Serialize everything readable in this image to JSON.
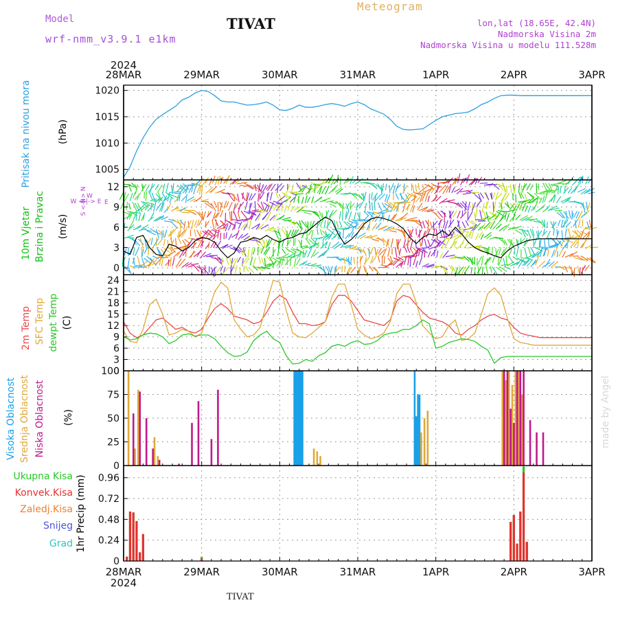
{
  "header": {
    "model_label": "Model",
    "model_name": "wrf-nmm_v3.9.1 e1km",
    "station": "TIVAT",
    "title": "Meteogram",
    "lonlat": "lon,lat (18.65E, 42.4N)",
    "elevation": "Nadmorska Visina 2m",
    "model_elevation": "Nadmorska Visina u modelu 111.528m"
  },
  "footer": {
    "station": "TIVAT",
    "credit": "made by Angel"
  },
  "time_axis": {
    "year_top": "2024",
    "year_bottom": "2024",
    "labels": [
      "28MAR",
      "29MAR",
      "30MAR",
      "31MAR",
      "1APR",
      "2APR",
      "3APR"
    ]
  },
  "colors": {
    "pressure": "#2a9fe0",
    "temp2m": "#e84848",
    "sfc_temp": "#e0a838",
    "dewpt": "#28c828",
    "wind_speed": "#000000",
    "high_cloud": "#18a0e8",
    "mid_cloud": "#e0a838",
    "low_cloud": "#c0188c",
    "total_precip": "#28c828",
    "conv_precip": "#e83030",
    "freezing_rain": "#f08030",
    "snow": "#5050e0",
    "hail": "#28c8c0",
    "wind_barbs": "#10c010"
  },
  "chart_data": [
    {
      "type": "line",
      "panel": "pressure",
      "ylabel": "Pritisak na nivou mora",
      "unit": "(hPa)",
      "ylim": [
        1003,
        1021
      ],
      "yticks": [
        1005,
        1010,
        1015,
        1020
      ],
      "grid": true,
      "series": [
        {
          "name": "Pritisak na nivou mora",
          "x": [
            0,
            2,
            4,
            6,
            8,
            10,
            12,
            14,
            16,
            18,
            20,
            22,
            24,
            26,
            28,
            30,
            32,
            34,
            36,
            38,
            40,
            42,
            44,
            46,
            48,
            50,
            52,
            54,
            56,
            58,
            60,
            62,
            64,
            66,
            68,
            70,
            72,
            74,
            76,
            78,
            80,
            82,
            84,
            86,
            88,
            90,
            92,
            94,
            96,
            98,
            100,
            102,
            104,
            106,
            108,
            110,
            112,
            114,
            116,
            118,
            120,
            122,
            124,
            126,
            128,
            130,
            132,
            134,
            136,
            138,
            140,
            142,
            144
          ],
          "values": [
            1003.5,
            1005.5,
            1008.5,
            1011,
            1013,
            1014.5,
            1015.4,
            1016.2,
            1017,
            1018.2,
            1018.7,
            1019.5,
            1020.0,
            1019.8,
            1019,
            1018,
            1017.8,
            1017.8,
            1017.5,
            1017.2,
            1017.3,
            1017.5,
            1017.8,
            1017.2,
            1016.3,
            1016.2,
            1016.6,
            1017.2,
            1016.8,
            1016.8,
            1017.0,
            1017.3,
            1017.5,
            1017.3,
            1017.0,
            1017.5,
            1017.8,
            1017.3,
            1016.5,
            1016.0,
            1015.5,
            1014.5,
            1013.2,
            1012.6,
            1012.5,
            1012.6,
            1012.7,
            1013.5,
            1014.3,
            1015.0,
            1015.3,
            1015.6,
            1015.7,
            1015.9,
            1016.5,
            1017.3,
            1017.8,
            1018.5,
            1019.0,
            1019.1,
            1019.1,
            1019.0,
            1019.0,
            1019.0,
            1019.0,
            1019.0,
            1019.0,
            1019.0,
            1019.0,
            1019.0,
            1019.0,
            1019.0,
            1019.0
          ]
        }
      ]
    },
    {
      "type": "line",
      "panel": "wind",
      "ylabel": "10m Vjetar Brzina i Pravac",
      "unit": "(m/s)",
      "compass_label": "N\n^\n|\nW <-|-> E\n|\nv\nS",
      "ylim": [
        -1,
        13
      ],
      "yticks": [
        0,
        3,
        6,
        9,
        12
      ],
      "grid": true,
      "series": [
        {
          "name": "10m Vjetar Brzina",
          "x": [
            0,
            2,
            4,
            6,
            8,
            10,
            12,
            14,
            16,
            18,
            20,
            22,
            24,
            26,
            28,
            30,
            32,
            34,
            36,
            38,
            40,
            42,
            44,
            46,
            48,
            50,
            52,
            54,
            56,
            58,
            60,
            62,
            64,
            66,
            68,
            70,
            72,
            74,
            76,
            78,
            80,
            82,
            84,
            86,
            88,
            90,
            92,
            94,
            96,
            98,
            100,
            102,
            104,
            106,
            108,
            110,
            112,
            114,
            116,
            118,
            120,
            122,
            124,
            126,
            128,
            130,
            132,
            134,
            136,
            138,
            140,
            142,
            144
          ],
          "values": [
            2.5,
            2,
            4.5,
            4.8,
            3,
            2,
            1.8,
            3.5,
            3.2,
            2.5,
            3,
            4,
            4.5,
            4.3,
            3.8,
            2.5,
            1.5,
            2.2,
            3.8,
            4,
            4.5,
            4.2,
            4.8,
            4.2,
            3.8,
            4.3,
            4.5,
            5,
            5.2,
            6,
            6.8,
            7.5,
            7,
            5,
            3.5,
            4.2,
            5.2,
            6.5,
            7.2,
            7.5,
            7.3,
            7,
            6.5,
            5.8,
            4.5,
            3.6,
            4.5,
            5,
            4.8,
            5.5,
            4.8,
            6,
            5,
            3.8,
            3,
            2.5,
            2.2,
            1.8,
            1.5,
            2.5,
            3.2,
            3.6,
            4.0,
            4.2,
            4.3,
            4.3,
            4.3,
            4.3,
            4.3,
            4.3,
            4.3,
            4.3,
            4.3
          ]
        }
      ]
    },
    {
      "type": "line",
      "panel": "temperature",
      "ylabel": "2m Temp SFC Temp dewpt Temp",
      "unit": "(C)",
      "ylim": [
        0,
        25.5
      ],
      "yticks": [
        0,
        3,
        6,
        9,
        12,
        15,
        18,
        21,
        24
      ],
      "grid": true,
      "series": [
        {
          "name": "2m Temp",
          "x": [
            0,
            2,
            4,
            6,
            8,
            10,
            12,
            14,
            16,
            18,
            20,
            22,
            24,
            26,
            28,
            30,
            32,
            34,
            36,
            38,
            40,
            42,
            44,
            46,
            48,
            50,
            52,
            54,
            56,
            58,
            60,
            62,
            64,
            66,
            68,
            70,
            72,
            74,
            76,
            78,
            80,
            82,
            84,
            86,
            88,
            90,
            92,
            94,
            96,
            98,
            100,
            102,
            104,
            106,
            108,
            110,
            112,
            114,
            116,
            118,
            120,
            122,
            124,
            126,
            128,
            130,
            132,
            134,
            136,
            138,
            140,
            142,
            144
          ],
          "values": [
            13,
            10,
            8.8,
            9.5,
            11.5,
            13.5,
            14,
            12.5,
            11,
            11.5,
            10.5,
            10,
            11,
            14,
            16.5,
            17.8,
            16.5,
            14.5,
            14,
            13.5,
            12.5,
            13,
            15.5,
            18.5,
            20,
            19,
            15.5,
            12.5,
            12.5,
            12,
            12.2,
            13,
            17.5,
            20,
            20,
            18.5,
            16,
            13.5,
            13,
            12.5,
            12,
            13.5,
            18.5,
            20,
            19.5,
            17.5,
            15.5,
            14,
            13.5,
            13,
            12,
            10,
            9.5,
            11,
            12,
            13.5,
            14.5,
            15,
            14,
            13.5,
            11.5,
            10,
            9.5,
            9.2,
            8.8,
            8.8,
            8.8,
            8.8,
            8.8,
            8.8,
            8.8,
            8.8,
            8.8
          ]
        },
        {
          "name": "SFC Temp",
          "x": [
            0,
            2,
            4,
            6,
            8,
            10,
            12,
            14,
            16,
            18,
            20,
            22,
            24,
            26,
            28,
            30,
            32,
            34,
            36,
            38,
            40,
            42,
            44,
            46,
            48,
            50,
            52,
            54,
            56,
            58,
            60,
            62,
            64,
            66,
            68,
            70,
            72,
            74,
            76,
            78,
            80,
            82,
            84,
            86,
            88,
            90,
            92,
            94,
            96,
            98,
            100,
            102,
            104,
            106,
            108,
            110,
            112,
            114,
            116,
            118,
            120,
            122,
            124,
            126,
            128,
            130,
            132,
            134,
            136,
            138,
            140,
            142,
            144
          ],
          "values": [
            10.5,
            7.8,
            7.5,
            11,
            17.5,
            19,
            15,
            9.5,
            10,
            11,
            10.5,
            9,
            10,
            15.5,
            21,
            23.5,
            22,
            13.5,
            11,
            9,
            9.5,
            11.5,
            18,
            24,
            23.5,
            16,
            10,
            9,
            8.8,
            10,
            11.5,
            13,
            19.5,
            23,
            23,
            17.5,
            11,
            9.5,
            8.5,
            9,
            10,
            13,
            20.5,
            23,
            23,
            18,
            12,
            10,
            8.5,
            9,
            12,
            13.5,
            8,
            8.5,
            10,
            15,
            20.5,
            22,
            20,
            14,
            8.5,
            7.5,
            7.2,
            6.8,
            6.8,
            6.8,
            6.8,
            6.8,
            6.8,
            6.8,
            6.8,
            6.8,
            6.8
          ]
        },
        {
          "name": "dewpt Temp",
          "x": [
            0,
            2,
            4,
            6,
            8,
            10,
            12,
            14,
            16,
            18,
            20,
            22,
            24,
            26,
            28,
            30,
            32,
            34,
            36,
            38,
            40,
            42,
            44,
            46,
            48,
            50,
            52,
            54,
            56,
            58,
            60,
            62,
            64,
            66,
            68,
            70,
            72,
            74,
            76,
            78,
            80,
            82,
            84,
            86,
            88,
            90,
            92,
            94,
            96,
            98,
            100,
            102,
            104,
            106,
            108,
            110,
            112,
            114,
            116,
            118,
            120,
            122,
            124,
            126,
            128,
            130,
            132,
            134,
            136,
            138,
            140,
            142,
            144
          ],
          "values": [
            9,
            8.2,
            8.5,
            9.5,
            10,
            9.8,
            9,
            7.2,
            8,
            9.5,
            9.8,
            9.2,
            9.5,
            9.5,
            8.5,
            6.5,
            4.8,
            3.8,
            4,
            5,
            8,
            9.5,
            10.5,
            8.5,
            7.5,
            4,
            1.8,
            2,
            3,
            2.5,
            4,
            4.8,
            6.5,
            7,
            6.5,
            7.5,
            8,
            7,
            7.2,
            8,
            9.5,
            10,
            10.2,
            11,
            11,
            12,
            13.5,
            12.5,
            6,
            6.5,
            7.5,
            8,
            8.5,
            8.3,
            7.8,
            6.5,
            5.5,
            2,
            3.5,
            3.8,
            3.8,
            3.8,
            3.8,
            3.8,
            3.8,
            3.8,
            3.8,
            3.8,
            3.8,
            3.8,
            3.8,
            3.8,
            3.8
          ]
        }
      ]
    },
    {
      "type": "bar",
      "panel": "clouds",
      "ylabel": "Visoka Oblacnost Srednja Oblacnost Niska Oblacnost",
      "unit": "(%)",
      "ylim": [
        0,
        100
      ],
      "yticks": [
        0,
        25,
        50,
        75,
        100
      ],
      "grid": true,
      "series": [
        {
          "name": "Visoka Oblacnost",
          "x": [
            52.5,
            53,
            53.5,
            54,
            54.5,
            55,
            89.5,
            90,
            90.5,
            91,
            91.5
          ],
          "values": [
            100,
            100,
            100,
            100,
            100,
            100,
            100,
            52,
            75,
            75,
            30
          ]
        },
        {
          "name": "Srednja Oblacnost",
          "x": [
            1,
            3,
            4,
            4.5,
            9,
            10,
            58,
            59,
            60,
            91,
            92,
            93,
            116,
            117,
            118,
            119,
            120,
            121,
            122
          ],
          "values": [
            100,
            18,
            80,
            78,
            30,
            10,
            18,
            15,
            10,
            35,
            50,
            58,
            100,
            90,
            100,
            85,
            100,
            100,
            75
          ]
        },
        {
          "name": "Niska Oblacnost",
          "x": [
            2,
            4,
            6,
            8,
            10,
            12,
            14,
            16,
            17,
            18,
            20,
            22,
            24,
            26,
            28,
            116,
            117,
            118,
            119,
            120,
            121,
            122,
            124,
            126,
            128
          ],
          "values": [
            55,
            78,
            50,
            18,
            6,
            0,
            0,
            2,
            0,
            0,
            45,
            68,
            0,
            28,
            80,
            100,
            100,
            60,
            45,
            100,
            100,
            100,
            48,
            35,
            35
          ]
        }
      ]
    },
    {
      "type": "bar",
      "panel": "precip",
      "ylabel": "1hr Precip (mm)",
      "ylim": [
        0,
        1.1
      ],
      "yticks": [
        0,
        0.24,
        0.48,
        0.72,
        0.96
      ],
      "grid": true,
      "series": [
        {
          "name": "Ukupna Kisa",
          "x": [
            1,
            2,
            3,
            4,
            5,
            6,
            24,
            119,
            120,
            121,
            122,
            123,
            124
          ],
          "values": [
            0.05,
            0.57,
            0.56,
            0.46,
            0.1,
            0.31,
            0.05,
            0.45,
            0.53,
            0.2,
            0.57,
            1.09,
            0.22
          ]
        },
        {
          "name": "Konvek.Kisa",
          "x": [
            1,
            2,
            3,
            4,
            5,
            6,
            24,
            119,
            120,
            121,
            122,
            123,
            124
          ],
          "values": [
            0.05,
            0.57,
            0.56,
            0.46,
            0.1,
            0.31,
            0.03,
            0.45,
            0.53,
            0.2,
            0.57,
            1.02,
            0.22
          ]
        },
        {
          "name": "Zaledj.Kisa",
          "x": [],
          "values": []
        },
        {
          "name": "Snijeg",
          "x": [],
          "values": []
        },
        {
          "name": "Grad",
          "x": [],
          "values": []
        }
      ]
    }
  ]
}
